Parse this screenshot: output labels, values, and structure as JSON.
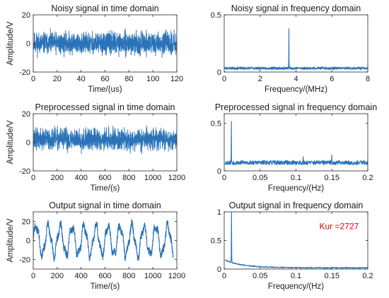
{
  "figure": {
    "series_color": "#2a73b8",
    "annotation_color": "#e00000"
  },
  "chart_data": [
    {
      "id": "p1",
      "type": "line",
      "title": "Noisy signal in time domain",
      "xlabel": "Time/(us)",
      "ylabel": "Amplitude/V",
      "xlim": [
        0,
        120
      ],
      "ylim": [
        -20,
        20
      ],
      "xticks": [
        0,
        20,
        40,
        60,
        80,
        100,
        120
      ],
      "yticks": [
        -20,
        0,
        20
      ],
      "grid": false,
      "series": [
        {
          "kind": "noise",
          "x_range": [
            0,
            120
          ],
          "center": 0,
          "amplitude": 11,
          "samples": 1400,
          "seed": 11
        }
      ]
    },
    {
      "id": "p2",
      "type": "line",
      "title": "Noisy signal in frequency domain",
      "xlabel": "Frequency/(MHz)",
      "ylabel": "",
      "xlim": [
        0,
        8
      ],
      "ylim": [
        0,
        0.5
      ],
      "xticks": [
        0,
        2,
        4,
        6,
        8
      ],
      "yticks": [
        0,
        0.5
      ],
      "grid": false,
      "series": [
        {
          "kind": "spectrum",
          "x_range": [
            0,
            8
          ],
          "floor": 0.03,
          "floor_var": 0.022,
          "samples": 700,
          "seed": 23,
          "peaks": [
            {
              "x": 3.6,
              "y": 0.38
            }
          ]
        }
      ]
    },
    {
      "id": "p3",
      "type": "line",
      "title": "Preprocessed signal in time domain",
      "xlabel": "Time/(s)",
      "ylabel": "Amplitude/V",
      "xlim": [
        0,
        1200
      ],
      "ylim": [
        -20,
        20
      ],
      "xticks": [
        0,
        200,
        400,
        600,
        800,
        1000,
        1200
      ],
      "yticks": [
        -20,
        0,
        20
      ],
      "grid": false,
      "series": [
        {
          "kind": "noise",
          "x_range": [
            0,
            1200
          ],
          "center": 2,
          "amplitude": 11,
          "samples": 1400,
          "seed": 37
        }
      ]
    },
    {
      "id": "p4",
      "type": "line",
      "title": "Preprocessed signal in frequency domain",
      "xlabel": "Frequency/(Hz)",
      "ylabel": "",
      "xlim": [
        0,
        0.2
      ],
      "ylim": [
        0,
        0.6
      ],
      "xticks": [
        0,
        0.05,
        0.1,
        0.15,
        0.2
      ],
      "yticks": [
        0,
        0.5
      ],
      "grid": false,
      "series": [
        {
          "kind": "spectrum",
          "x_range": [
            0.001,
            0.2
          ],
          "floor": 0.08,
          "floor_var": 0.045,
          "samples": 600,
          "seed": 53,
          "peaks": [
            {
              "x": 0.01,
              "y": 0.52
            },
            {
              "x": 0.15,
              "y": 0.17
            },
            {
              "x": 0.11,
              "y": 0.15
            }
          ]
        }
      ]
    },
    {
      "id": "p5",
      "type": "line",
      "title": "Output signal in time domain",
      "xlabel": "Time/(s)",
      "ylabel": "Amplitude/V",
      "xlim": [
        0,
        1200
      ],
      "ylim": [
        -30,
        30
      ],
      "xticks": [
        0,
        200,
        400,
        600,
        800,
        1000,
        1200
      ],
      "yticks": [
        -20,
        0,
        20
      ],
      "grid": false,
      "series": [
        {
          "kind": "oscillation",
          "x_range": [
            0,
            1170
          ],
          "center": 0,
          "amplitude": 15,
          "period": 100,
          "noise": 4,
          "samples": 1000,
          "seed": 71
        }
      ]
    },
    {
      "id": "p6",
      "type": "line",
      "title": "Output signal in frequency domain",
      "xlabel": "Frequency/(Hz)",
      "ylabel": "",
      "xlim": [
        0,
        0.2
      ],
      "ylim": [
        0,
        1
      ],
      "xticks": [
        0,
        0.05,
        0.1,
        0.15,
        0.2
      ],
      "yticks": [
        0,
        0.5,
        1
      ],
      "grid": false,
      "annotations": [
        {
          "text": "Kur =2727",
          "x": 0.16,
          "y": 0.7
        }
      ],
      "series": [
        {
          "kind": "decay",
          "x_range": [
            0.001,
            0.2
          ],
          "floor": 0.02,
          "decay_amp": 0.14,
          "decay_rate": 40,
          "floor_var": 0.02,
          "samples": 500,
          "seed": 89,
          "peaks": [
            {
              "x": 0.01,
              "y": 1.0
            }
          ]
        }
      ]
    }
  ]
}
